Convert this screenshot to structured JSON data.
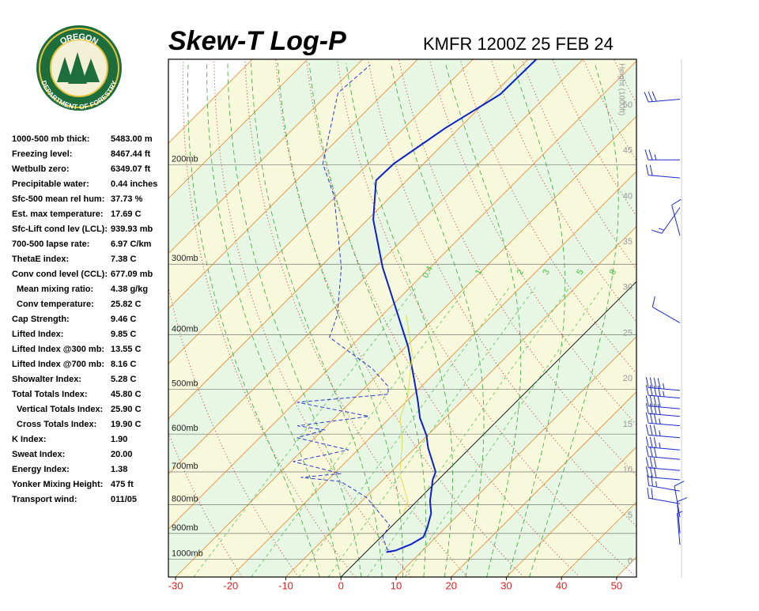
{
  "logo": {
    "top": "OREGON",
    "bottom": "DEPARTMENT OF FORESTRY"
  },
  "indices": [
    [
      "1000-500 mb thick:",
      "5483.00 m"
    ],
    [
      "Freezing level:",
      "8467.44 ft"
    ],
    [
      "Wetbulb zero:",
      "6349.07 ft"
    ],
    [
      "Precipitable water:",
      "0.44 inches"
    ],
    [
      "Sfc-500 mean rel hum:",
      "37.73 %"
    ],
    [
      "Est. max temperature:",
      "17.69 C"
    ],
    [
      "Sfc-Lift cond lev (LCL):",
      "939.93 mb"
    ],
    [
      "700-500 lapse rate:",
      "6.97 C/km"
    ],
    [
      "ThetaE index:",
      "7.38 C"
    ],
    [
      "Conv cond level (CCL):",
      "677.09 mb"
    ],
    [
      "Mean mixing ratio:",
      "4.38 g/kg"
    ],
    [
      "Conv temperature:",
      "25.82 C"
    ],
    [
      "Cap Strength:",
      "9.46 C"
    ],
    [
      "Lifted Index:",
      "9.85 C"
    ],
    [
      "Lifted Index @300 mb:",
      "13.55 C"
    ],
    [
      "Lifted Index @700 mb:",
      "8.16 C"
    ],
    [
      "Showalter Index:",
      "5.28 C"
    ],
    [
      "Total Totals Index:",
      "45.80 C"
    ],
    [
      "Vertical Totals Index:",
      "25.90 C"
    ],
    [
      "Cross Totals Index:",
      "19.90 C"
    ],
    [
      "K Index:",
      "1.90"
    ],
    [
      "Sweat Index:",
      "20.00"
    ],
    [
      "Energy Index:",
      "1.38"
    ],
    [
      "Yonker Mixing Height:",
      "475 ft"
    ],
    [
      "Transport wind:",
      "011/05"
    ]
  ],
  "chart_data": {
    "type": "skewt",
    "title": "Skew-T Log-P",
    "subtitle": "KMFR 1200Z 25 FEB 24",
    "height_label": "Height (1000ft)",
    "xlim": [
      -31.3,
      53.6
    ],
    "xticks": [
      -30,
      -20,
      -10,
      0,
      10,
      20,
      30,
      40,
      50
    ],
    "plim": [
      1075,
      130
    ],
    "pressure_ticks": [
      {
        "value": 200,
        "label": "200mb"
      },
      {
        "value": 300,
        "label": "300mb"
      },
      {
        "value": 400,
        "label": "400mb"
      },
      {
        "value": 500,
        "label": "500mb"
      },
      {
        "value": 600,
        "label": "600mb"
      },
      {
        "value": 700,
        "label": "700mb"
      },
      {
        "value": 800,
        "label": "800mb"
      },
      {
        "value": 900,
        "label": "900mb"
      },
      {
        "value": 1000,
        "label": "1000mb"
      }
    ],
    "height_ticks": [
      0,
      5,
      10,
      15,
      20,
      25,
      30,
      35,
      40,
      45,
      50
    ],
    "isotherms": [
      -110,
      -100,
      -90,
      -80,
      -70,
      -60,
      -50,
      -40,
      -30,
      -20,
      -10,
      0,
      10,
      20,
      30,
      40,
      50
    ],
    "dry_adiabats": [
      250,
      260,
      270,
      280,
      290,
      300,
      310,
      320,
      330,
      340,
      350,
      360,
      370,
      380,
      390,
      400,
      410,
      420,
      430,
      440,
      450,
      460
    ],
    "moist_adiabats": [
      -8,
      -4,
      0,
      4,
      8,
      12,
      16,
      20,
      24,
      28,
      32
    ],
    "mixing_ratios": [
      0.4,
      1,
      2,
      3,
      5,
      8
    ],
    "series": [
      {
        "color": "#0a22c8",
        "pressure": [
          971,
          965,
          950,
          940,
          913,
          879,
          829,
          789,
          723,
          700,
          635,
          603,
          562,
          523,
          478,
          420,
          346,
          304,
          250,
          213,
          199,
          172,
          150,
          130
        ],
        "temperature": [
          3.7,
          5.1,
          6.1,
          6.8,
          7.7,
          6.7,
          4.8,
          2.4,
          -1.0,
          -1.9,
          -7.6,
          -10.2,
          -14.5,
          -18.1,
          -22.8,
          -29.6,
          -41.0,
          -48.6,
          -59.0,
          -65.6,
          -65.4,
          -62.5,
          -58.7,
          -58.5
        ]
      },
      {
        "color": "#2a3ad0",
        "pressure": [
          965,
          913,
          870,
          823,
          777,
          728,
          716,
          705,
          671,
          640,
          609,
          590,
          580,
          558,
          527,
          510,
          494,
          460,
          404,
          369,
          304,
          227,
          199,
          149,
          133
        ],
        "temperature": [
          3.7,
          0.3,
          -0.6,
          -5.1,
          -9.8,
          -17.4,
          -25.3,
          -18.8,
          -29.6,
          -21.7,
          -33.2,
          -29.6,
          -35.3,
          -24.1,
          -39.6,
          -24.6,
          -26.0,
          -32.0,
          -45.6,
          -48.2,
          -56.1,
          -70.4,
          -78.3,
          -88.4,
          -87.6
        ]
      },
      {
        "color": "#dede48",
        "pressure": [
          829,
          789,
          705,
          619,
          562,
          510,
          434,
          369
        ],
        "temperature": [
          -0.2,
          -1.6,
          -8.1,
          -13.4,
          -18.1,
          -21.0,
          -27.4,
          -35.7
        ]
      }
    ],
    "winds": [
      {
        "pressure": 153,
        "direction": 265,
        "speed": 30
      },
      {
        "pressure": 196,
        "direction": 270,
        "speed": 25
      },
      {
        "pressure": 211,
        "direction": 275,
        "speed": 20
      },
      {
        "pressure": 238,
        "direction": 215,
        "speed": 15
      },
      {
        "pressure": 267,
        "direction": 345,
        "speed": 10
      },
      {
        "pressure": 381,
        "direction": 300,
        "speed": 10
      },
      {
        "pressure": 502,
        "direction": 275,
        "speed": 45
      },
      {
        "pressure": 518,
        "direction": 275,
        "speed": 45
      },
      {
        "pressure": 541,
        "direction": 275,
        "speed": 40
      },
      {
        "pressure": 558,
        "direction": 275,
        "speed": 40
      },
      {
        "pressure": 580,
        "direction": 275,
        "speed": 35
      },
      {
        "pressure": 609,
        "direction": 275,
        "speed": 35
      },
      {
        "pressure": 640,
        "direction": 275,
        "speed": 35
      },
      {
        "pressure": 665,
        "direction": 275,
        "speed": 30
      },
      {
        "pressure": 696,
        "direction": 275,
        "speed": 30
      },
      {
        "pressure": 723,
        "direction": 275,
        "speed": 30
      },
      {
        "pressure": 757,
        "direction": 280,
        "speed": 25
      },
      {
        "pressure": 797,
        "direction": 280,
        "speed": 20
      },
      {
        "pressure": 842,
        "direction": 350,
        "speed": 10
      },
      {
        "pressure": 899,
        "direction": 355,
        "speed": 10
      },
      {
        "pressure": 943,
        "direction": 355,
        "speed": 5
      }
    ]
  }
}
